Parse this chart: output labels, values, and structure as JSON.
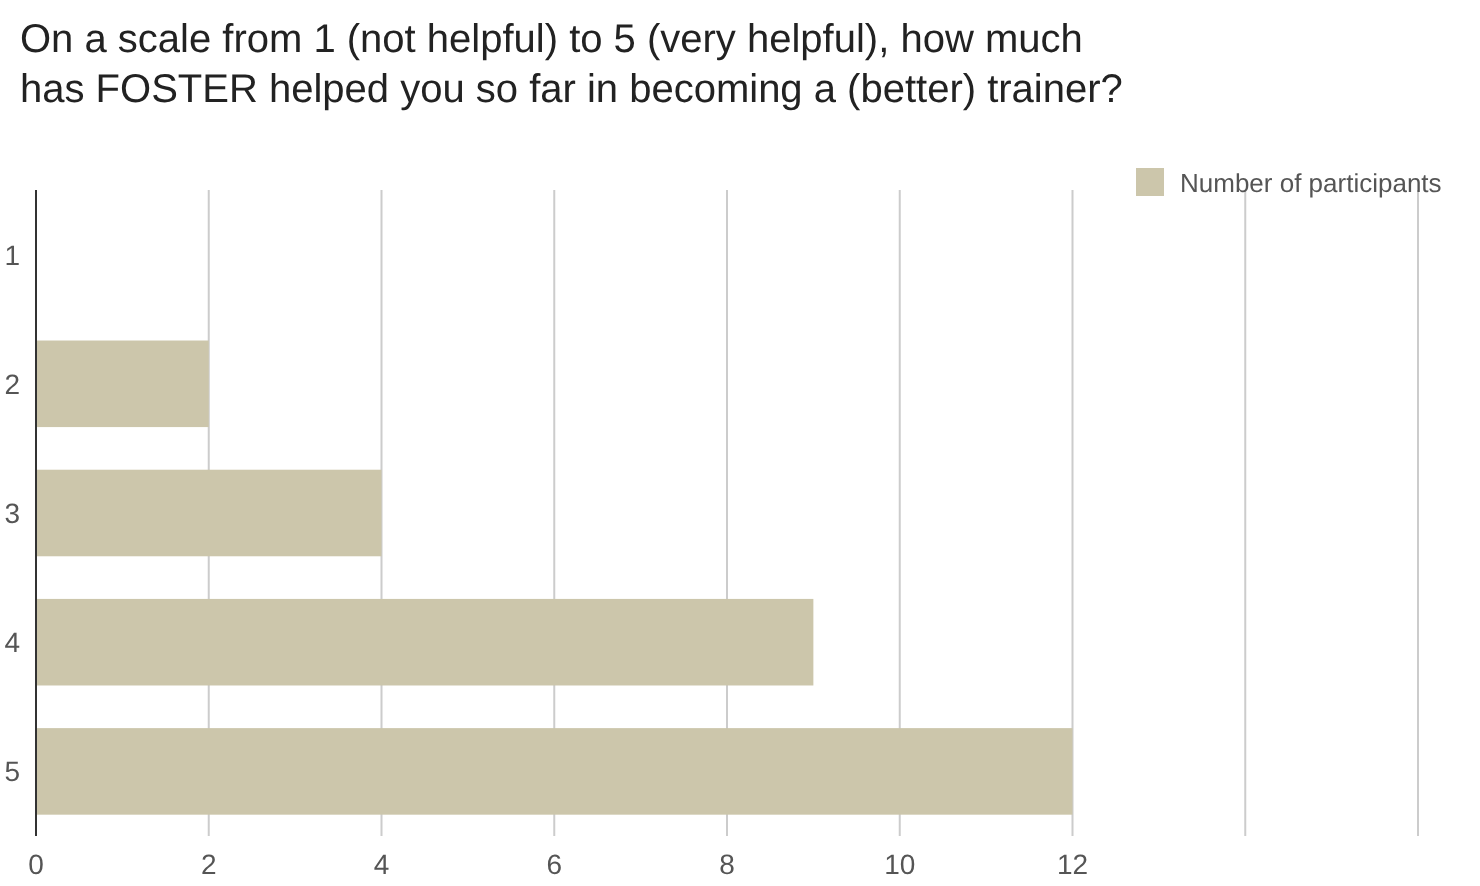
{
  "chart_data": {
    "type": "bar",
    "orientation": "horizontal",
    "title": "On a scale from 1 (not helpful) to 5 (very helpful), how much has FOSTER helped you so far in becoming a (better) trainer?",
    "categories": [
      "1",
      "2",
      "3",
      "4",
      "5"
    ],
    "series": [
      {
        "name": "Number of participants",
        "color": "#ccc6ab",
        "values": [
          0,
          2,
          4,
          9,
          12
        ]
      }
    ],
    "xlim": [
      0,
      16
    ],
    "xticks": [
      0,
      2,
      4,
      6,
      8,
      10,
      12,
      {
        "value": 14,
        "label": null
      },
      {
        "value": 16,
        "label": null
      }
    ],
    "grid": "x",
    "legend": "top right"
  }
}
